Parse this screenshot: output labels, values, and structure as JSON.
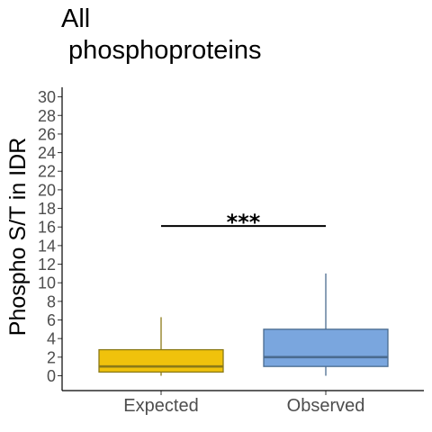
{
  "chart_data": {
    "type": "box",
    "title": "All\n phosphoproteins",
    "title_lines": [
      "All",
      " phosphoproteins"
    ],
    "xlabel": "",
    "ylabel": "Phospho S/T in IDR",
    "ylim": [
      -1,
      31
    ],
    "y_ticks": [
      0,
      2,
      4,
      6,
      8,
      10,
      12,
      14,
      16,
      18,
      20,
      22,
      24,
      26,
      28,
      30
    ],
    "grid": false,
    "categories": [
      "Expected",
      "Observed"
    ],
    "boxes": [
      {
        "category": "Expected",
        "whisker_low": 0,
        "q1": 0.4,
        "median": 1.0,
        "q3": 2.8,
        "whisker_high": 6.3,
        "fill": "#f0c20c",
        "stroke": "#8b7a16"
      },
      {
        "category": "Observed",
        "whisker_low": 0,
        "q1": 1.0,
        "median": 2.0,
        "q3": 5.0,
        "whisker_high": 11.0,
        "fill": "#7aa6de",
        "stroke": "#4a6b8f"
      }
    ],
    "annotation": {
      "text": "***",
      "y": 16.1,
      "from": "Expected",
      "to": "Observed"
    }
  }
}
